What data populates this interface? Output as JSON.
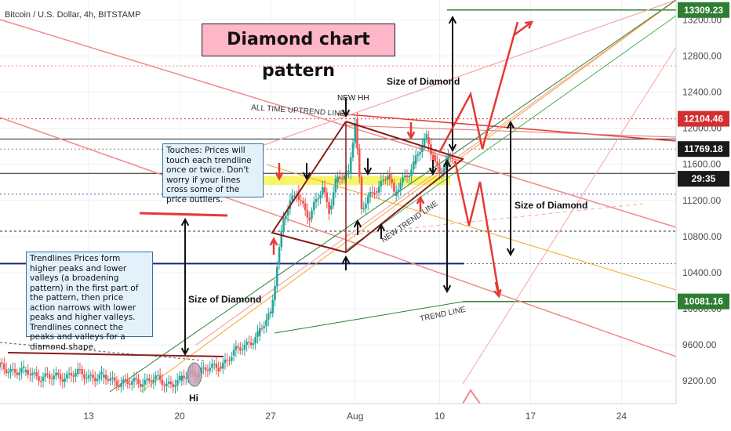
{
  "chart_data": {
    "type": "candlestick",
    "symbol_line": "Bitcoin / U.S. Dollar, 4h, BITSTAMP",
    "title": "Diamond chart pattern",
    "y_ticks": [
      "13200.00",
      "12800.00",
      "12400.00",
      "12000.00",
      "11600.00",
      "11200.00",
      "10800.00",
      "10400.00",
      "10000.00",
      "9600.00",
      "9200.00"
    ],
    "y_tick_values": [
      13200,
      12800,
      12400,
      12000,
      11600,
      11200,
      10800,
      10400,
      10000,
      9600,
      9200
    ],
    "ylim": [
      8950,
      13420
    ],
    "x_ticks": [
      "13",
      "20",
      "27",
      "Aug",
      "10",
      "17",
      "24"
    ],
    "price_labels": [
      {
        "text": "13309.23",
        "value": 13309.23,
        "color": "#2f7d32"
      },
      {
        "text": "12104.46",
        "value": 12104.46,
        "color": "#d32f2f"
      },
      {
        "text": "11769.18",
        "value": 11769.18,
        "color": "#1a1a1a"
      },
      {
        "text": "29:35",
        "value": 11440,
        "color": "#1a1a1a"
      },
      {
        "text": "10081.16",
        "value": 10081.16,
        "color": "#2f7d32"
      }
    ],
    "price_series": [
      {
        "t": 0,
        "p": 9300
      },
      {
        "t": 2,
        "p": 9330
      },
      {
        "t": 4,
        "p": 9270
      },
      {
        "t": 6,
        "p": 9350
      },
      {
        "t": 8,
        "p": 9300
      },
      {
        "t": 10,
        "p": 9230
      },
      {
        "t": 12,
        "p": 9280
      },
      {
        "t": 14,
        "p": 9240
      },
      {
        "t": 16,
        "p": 9170
      },
      {
        "t": 18,
        "p": 9220
      },
      {
        "t": 19,
        "p": 9170
      },
      {
        "t": 20,
        "p": 9200
      },
      {
        "t": 21,
        "p": 9300
      },
      {
        "t": 22,
        "p": 9320
      },
      {
        "t": 23,
        "p": 9360
      },
      {
        "t": 24,
        "p": 9480
      },
      {
        "t": 25,
        "p": 9600
      },
      {
        "t": 26,
        "p": 9700
      },
      {
        "t": 27,
        "p": 9950
      },
      {
        "t": 27.5,
        "p": 10500
      },
      {
        "t": 28,
        "p": 11000
      },
      {
        "t": 29,
        "p": 11300
      },
      {
        "t": 30,
        "p": 11000
      },
      {
        "t": 31,
        "p": 11350
      },
      {
        "t": 31.5,
        "p": 11100
      },
      {
        "t": 32,
        "p": 11400
      },
      {
        "t": 33,
        "p": 11500
      },
      {
        "t": 33.5,
        "p": 12100
      },
      {
        "t": 34,
        "p": 11100
      },
      {
        "t": 35,
        "p": 11300
      },
      {
        "t": 36,
        "p": 11500
      },
      {
        "t": 36.5,
        "p": 11250
      },
      {
        "t": 37,
        "p": 11400
      },
      {
        "t": 38,
        "p": 11600
      },
      {
        "t": 39,
        "p": 11900
      },
      {
        "t": 39.5,
        "p": 11700
      },
      {
        "t": 40,
        "p": 11500
      },
      {
        "t": 41,
        "p": 11700
      }
    ],
    "annotations": {
      "new_hh": "NEW HH",
      "all_time_uptrend": "ALL TIME UPTREND LINE",
      "new_trend": "NEW TREND LINE",
      "trend_line": "TREND LINE",
      "size_of_diamond": "Size of Diamond",
      "hi": "Hi"
    },
    "notes": {
      "touches": "Touches: Prices will touch each trendline once or twice. Don't worry if your lines cross some of the price outliers.",
      "trendlines": "Trendlines Prices form higher peaks and lower valleys (a broadening pattern) in the first part of the pattern, then price action narrows with lower peaks and higher valleys. Trendlines connect the peaks and valleys for a diamond shape."
    }
  }
}
